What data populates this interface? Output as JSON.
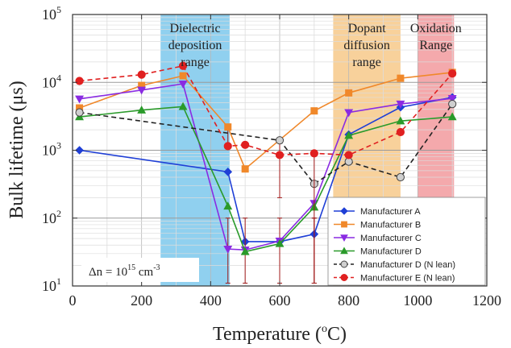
{
  "chart_data": {
    "type": "line",
    "xlabel_main": "Temperature (",
    "xlabel_sup": "o",
    "xlabel_end": "C)",
    "ylabel_main": "Bulk lifetime (",
    "ylabel_unit": "μs",
    "ylabel_end": ")",
    "xlim": [
      0,
      1200
    ],
    "ylim": [
      10,
      100000
    ],
    "yscale": "log",
    "grid": true,
    "x_ticks": [
      "0",
      "200",
      "400",
      "600",
      "800",
      "1000",
      "1200"
    ],
    "y_ticks_base": "10",
    "y_ticks_exp": [
      "1",
      "2",
      "3",
      "4",
      "5"
    ],
    "regions": [
      {
        "x": [
          255,
          455
        ],
        "color": "#7cc8ec",
        "label_lines": [
          "Dielectric",
          "deposition",
          "range"
        ]
      },
      {
        "x": [
          755,
          950
        ],
        "color": "#f7c98a",
        "label_lines": [
          "Dopant",
          "diffusion",
          "range"
        ]
      },
      {
        "x": [
          1000,
          1105
        ],
        "color": "#f29a9e",
        "label_lines": [
          "Oxidation",
          "Range"
        ]
      }
    ],
    "annotation": {
      "prefix": "Δn = 10",
      "exp": "15",
      "unit": " cm",
      "unit_exp": "-3"
    },
    "legend_position": "lower-right",
    "series": [
      {
        "name": "Manufacturer A",
        "color": "#1f3fd6",
        "marker": "diamond",
        "dash": "",
        "x": [
          20,
          450,
          500,
          600,
          700,
          800,
          950,
          1100
        ],
        "y": [
          1000,
          480,
          45,
          45,
          58,
          1700,
          4300,
          6000
        ],
        "err": [
          null,
          null,
          null,
          null,
          [
            11,
            100
          ],
          null,
          null,
          null
        ]
      },
      {
        "name": "Manufacturer B",
        "color": "#f0882a",
        "marker": "square",
        "dash": "",
        "x": [
          20,
          200,
          320,
          450,
          500,
          700,
          800,
          950,
          1100
        ],
        "y": [
          4200,
          9000,
          12500,
          2200,
          530,
          3800,
          7000,
          11500,
          14000
        ],
        "err": [
          null,
          null,
          null,
          [
            1200,
            2200
          ],
          null,
          null,
          null,
          null,
          null
        ]
      },
      {
        "name": "Manufacturer C",
        "color": "#8a2be2",
        "marker": "triangle-down",
        "dash": "",
        "x": [
          20,
          200,
          320,
          450,
          500,
          600,
          700,
          800,
          950,
          1100
        ],
        "y": [
          5700,
          7700,
          9500,
          35,
          34,
          46,
          165,
          3600,
          4800,
          5800
        ],
        "err": [
          null,
          null,
          null,
          [
            11,
            100
          ],
          [
            11,
            100
          ],
          [
            11,
            100
          ],
          [
            11,
            100
          ],
          null,
          null,
          null
        ]
      },
      {
        "name": "Manufacturer D",
        "color": "#2a9a2a",
        "marker": "triangle-up",
        "dash": "",
        "x": [
          20,
          200,
          320,
          450,
          500,
          600,
          700,
          800,
          950,
          1100
        ],
        "y": [
          3100,
          3900,
          4400,
          150,
          32,
          42,
          145,
          1650,
          2700,
          3100
        ],
        "err": [
          null,
          null,
          null,
          null,
          null,
          null,
          null,
          null,
          null,
          null
        ]
      },
      {
        "name": "Manufacturer D (N lean)",
        "color": "#222222",
        "marker": "circle-open",
        "dash": "6,4",
        "x": [
          20,
          600,
          700,
          800,
          950,
          1100
        ],
        "y": [
          3600,
          1400,
          320,
          680,
          400,
          4800
        ],
        "err": [
          null,
          [
            200,
            1400
          ],
          null,
          null,
          null,
          null
        ]
      },
      {
        "name": "Manufacturer E (N lean)",
        "color": "#e02020",
        "marker": "circle",
        "dash": "6,4",
        "x": [
          20,
          200,
          320,
          450,
          500,
          600,
          700,
          800,
          950,
          1100
        ],
        "y": [
          10500,
          13000,
          17500,
          1150,
          1200,
          850,
          900,
          850,
          1850,
          13500
        ],
        "err": [
          null,
          null,
          null,
          null,
          null,
          null,
          [
            11,
            900
          ],
          null,
          null,
          null
        ]
      }
    ]
  },
  "error_bar_color": "#a01818"
}
